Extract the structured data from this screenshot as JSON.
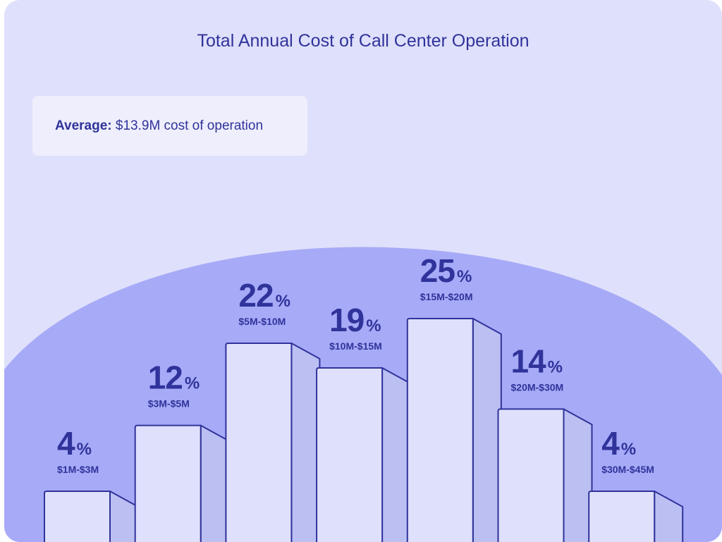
{
  "chart_data": {
    "type": "bar",
    "title": "Total Annual Cost of Call Center Operation",
    "annotation": {
      "label": "Average:",
      "text": "$13.9M cost of operation"
    },
    "categories": [
      "$1M-$3M",
      "$3M-$5M",
      "$5M-$10M",
      "$10M-$15M",
      "$15M-$20M",
      "$20M-$30M",
      "$30M-$45M"
    ],
    "values": [
      4,
      12,
      22,
      19,
      25,
      14,
      4
    ],
    "value_suffix": "%",
    "ylim": [
      0,
      25
    ],
    "grid": false,
    "legend": "none"
  },
  "colors": {
    "card_background": "#dfe0fb",
    "dome": "#a7aaf7",
    "bar_front": "#dfe0fb",
    "bar_side": "#bcbff2",
    "outline": "#30339a",
    "text": "#30339a"
  }
}
